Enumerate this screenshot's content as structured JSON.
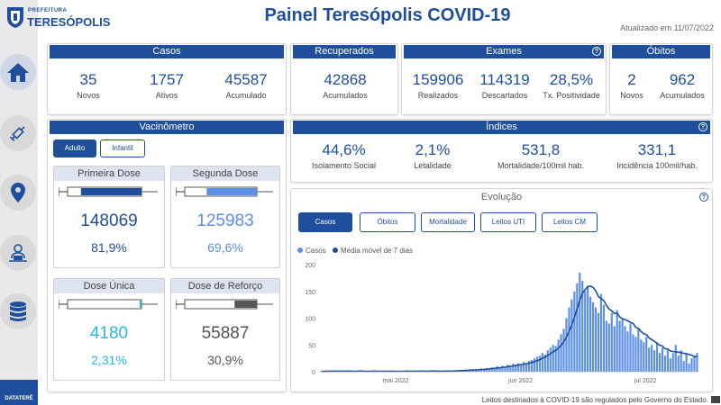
{
  "header": {
    "logo_prefix": "PREFEITURA",
    "logo_city": "TERESÓPOLIS",
    "title": "Painel Teresópolis COVID-19",
    "updated": "Atualizado em 11/07/2022"
  },
  "sidebar": {
    "items": [
      {
        "name": "home-icon",
        "active": true
      },
      {
        "name": "vaccine-icon",
        "active": false
      },
      {
        "name": "map-pin-icon",
        "active": false
      },
      {
        "name": "user-desk-icon",
        "active": false
      },
      {
        "name": "database-icon",
        "active": false
      }
    ],
    "brand": "DATATERÊ"
  },
  "casos": {
    "title": "Casos",
    "novos_value": "35",
    "novos_label": "Novos",
    "ativos_value": "1757",
    "ativos_label": "Ativos",
    "acum_value": "45587",
    "acum_label": "Acumulado"
  },
  "recuperados": {
    "title": "Recuperados",
    "value": "42868",
    "label": "Acumulados"
  },
  "exames": {
    "title": "Exames",
    "realizados_value": "159906",
    "realizados_label": "Realizados",
    "descartados_value": "114319",
    "descartados_label": "Descartados",
    "positividade_value": "28,5%",
    "positividade_label": "Tx. Positividade"
  },
  "obitos": {
    "title": "Óbitos",
    "novos_value": "2",
    "novos_label": "Novos",
    "acum_value": "962",
    "acum_label": "Acumulados"
  },
  "vacinometro": {
    "title": "Vacinômetro",
    "tabs": [
      "Adulto",
      "Infantil"
    ],
    "primeira": {
      "title": "Primeira Dose",
      "value": "148069",
      "pct": "81,9%",
      "fill": 0.819
    },
    "segunda": {
      "title": "Segunda Dose",
      "value": "125983",
      "pct": "69,6%",
      "fill": 0.696
    },
    "unica": {
      "title": "Dose Única",
      "value": "4180",
      "pct": "2,31%",
      "fill": 0.0231
    },
    "reforco": {
      "title": "Dose de Reforço",
      "value": "55887",
      "pct": "30,9%",
      "fill": 0.309
    }
  },
  "indices": {
    "title": "Índices",
    "isolamento_value": "44,6%",
    "isolamento_label": "Isolamento Social",
    "letalidade_value": "2,1%",
    "letalidade_label": "Letalidade",
    "mortalidade_value": "531,8",
    "mortalidade_label": "Mortalidade/100mil hab.",
    "incidencia_value": "331,1",
    "incidencia_label": "Incidência 100mil/hab."
  },
  "evolucao": {
    "title": "Evolução",
    "tabs": [
      "Casos",
      "Óbitos",
      "Mortalidade",
      "Leitos UTI",
      "Leitos CM"
    ]
  },
  "footer": {
    "note": "Leitos destinados à COVID-19 são regulados pelo Governo do Estado."
  },
  "colors": {
    "primary": "#1f4e9c",
    "bar": "#5b8ee6",
    "dose_dark": "#1f4e9c",
    "dose_light": "#5b8ee6",
    "dose_cyan": "#29b6e8",
    "dose_gray": "#555555"
  },
  "chart_data": {
    "type": "bar",
    "series": [
      {
        "name": "Casos",
        "type": "bar",
        "values": [
          1,
          0,
          2,
          1,
          1,
          2,
          1,
          0,
          1,
          2,
          1,
          1,
          0,
          1,
          2,
          1,
          1,
          0,
          1,
          1,
          2,
          1,
          0,
          1,
          1,
          0,
          2,
          1,
          1,
          0,
          1,
          1,
          2,
          1,
          1,
          1,
          0,
          2,
          1,
          1,
          1,
          2,
          1,
          1,
          0,
          1,
          2,
          1,
          2,
          1,
          3,
          2,
          3,
          2,
          4,
          3,
          4,
          3,
          5,
          4,
          6,
          5,
          7,
          6,
          8,
          7,
          10,
          8,
          11,
          9,
          13,
          11,
          15,
          13,
          16,
          14,
          18,
          16,
          20,
          22,
          25,
          28,
          30,
          35,
          32,
          40,
          45,
          50,
          48,
          60,
          70,
          80,
          100,
          120,
          135,
          150,
          165,
          185,
          170,
          150,
          160,
          140,
          130,
          120,
          110,
          145,
          125,
          95,
          90,
          110,
          85,
          115,
          95,
          100,
          85,
          75,
          90,
          70,
          65,
          80,
          60,
          55,
          65,
          45,
          50,
          40,
          55,
          35,
          45,
          30,
          40,
          25,
          35,
          50,
          30,
          40,
          20,
          35,
          15,
          25,
          30,
          35
        ],
        "x_start": "2022-04-20",
        "x_end": "2022-07-11"
      },
      {
        "name": "Média móvel de 7 dias",
        "type": "line"
      }
    ],
    "legend": [
      "Casos",
      "Média móvel de 7 dias"
    ],
    "legend_position": "top-left",
    "ylim": [
      0,
      200
    ],
    "yticks": [
      0,
      50,
      100,
      150,
      200
    ],
    "xticks": [
      "mai 2022",
      "jun 2022",
      "jul 2022"
    ],
    "grid": false
  }
}
